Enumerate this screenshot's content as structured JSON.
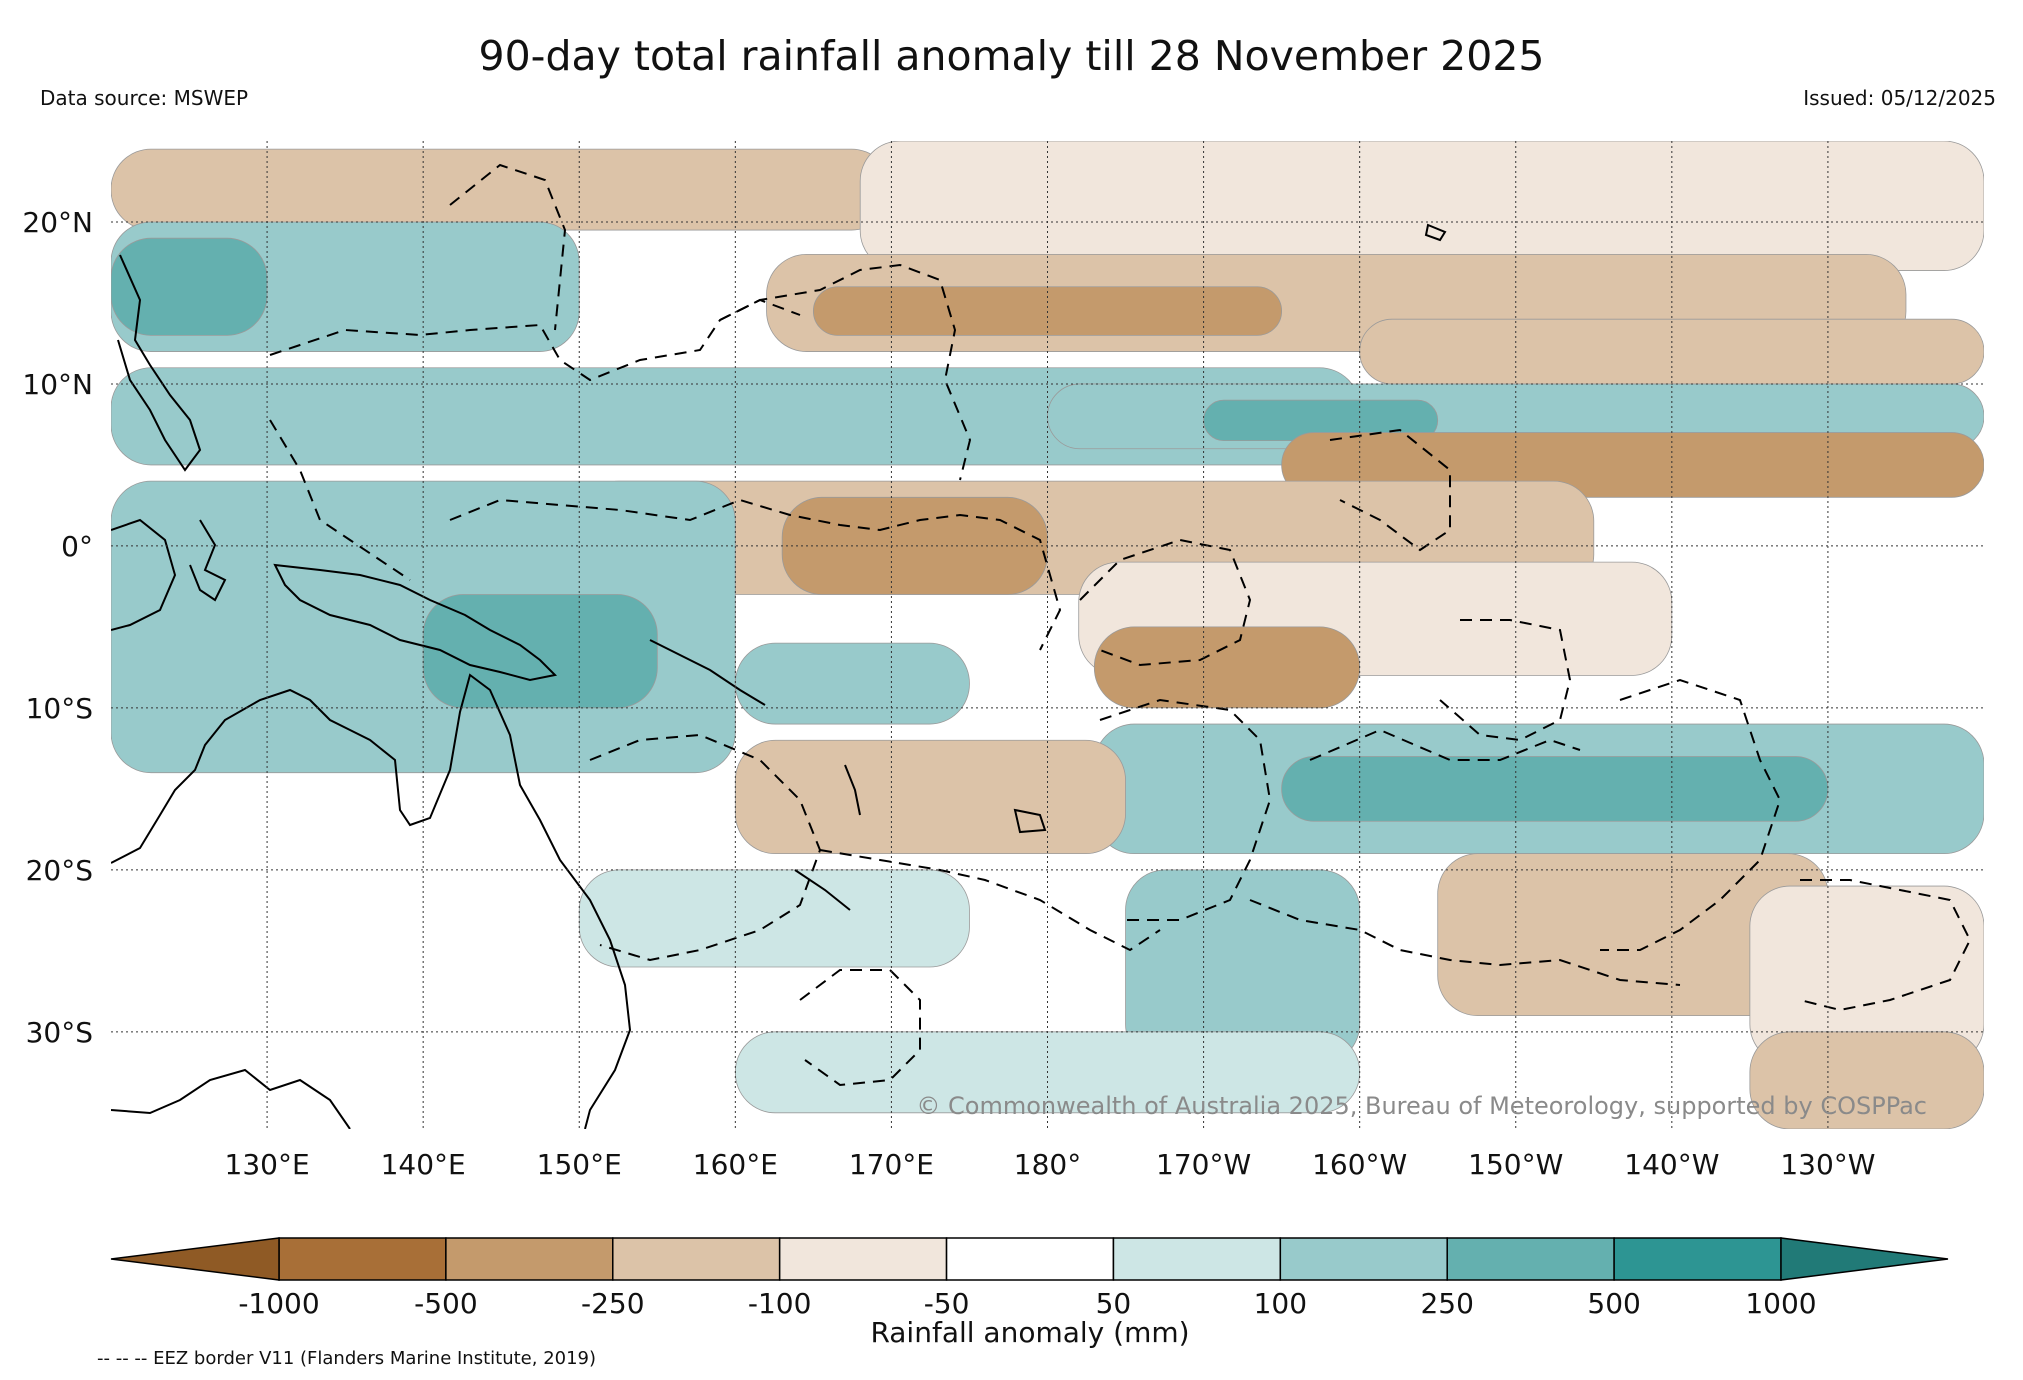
{
  "title": "90-day total rainfall anomaly till 28 November 2025",
  "data_source": "Data source: MSWEP",
  "issued": "Issued: 05/12/2025",
  "map": {
    "lon_range": [
      120,
      240
    ],
    "lat_range": [
      -36,
      25
    ],
    "lat_ticks": [
      {
        "value": 20,
        "label": "20°N"
      },
      {
        "value": 10,
        "label": "10°N"
      },
      {
        "value": 0,
        "label": "0°"
      },
      {
        "value": -10,
        "label": "10°S"
      },
      {
        "value": -20,
        "label": "20°S"
      },
      {
        "value": -30,
        "label": "30°S"
      }
    ],
    "lon_ticks": [
      {
        "value": 130,
        "label": "130°E"
      },
      {
        "value": 140,
        "label": "140°E"
      },
      {
        "value": 150,
        "label": "150°E"
      },
      {
        "value": 160,
        "label": "160°E"
      },
      {
        "value": 170,
        "label": "170°E"
      },
      {
        "value": 180,
        "label": "180°"
      },
      {
        "value": 190,
        "label": "170°W"
      },
      {
        "value": 200,
        "label": "160°W"
      },
      {
        "value": 210,
        "label": "150°W"
      },
      {
        "value": 220,
        "label": "140°W"
      },
      {
        "value": 230,
        "label": "130°W"
      }
    ],
    "gridlines": true,
    "copyright": "© Commonwealth of Australia 2025, Bureau of Meteorology, supported by COSPPac",
    "anomaly_bands": [
      {
        "lon": [
          120,
          170
        ],
        "lat": [
          19.5,
          24.5
        ],
        "level": "dry_100_250"
      },
      {
        "lon": [
          168,
          240
        ],
        "lat": [
          17,
          25
        ],
        "level": "dry_50_100"
      },
      {
        "lon": [
          162,
          235
        ],
        "lat": [
          12,
          18
        ],
        "level": "dry_100_250"
      },
      {
        "lon": [
          165,
          195
        ],
        "lat": [
          13,
          16
        ],
        "level": "dry_250_500"
      },
      {
        "lon": [
          120,
          150
        ],
        "lat": [
          12,
          20
        ],
        "level": "wet_100_250"
      },
      {
        "lon": [
          120,
          130
        ],
        "lat": [
          13,
          19
        ],
        "level": "wet_250_500"
      },
      {
        "lon": [
          120,
          200
        ],
        "lat": [
          5,
          11
        ],
        "level": "wet_100_250"
      },
      {
        "lon": [
          180,
          240
        ],
        "lat": [
          6,
          10
        ],
        "level": "wet_100_250"
      },
      {
        "lon": [
          190,
          205
        ],
        "lat": [
          6.5,
          9
        ],
        "level": "wet_250_500"
      },
      {
        "lon": [
          200,
          240
        ],
        "lat": [
          10,
          14
        ],
        "level": "dry_100_250"
      },
      {
        "lon": [
          195,
          240
        ],
        "lat": [
          3,
          7
        ],
        "level": "dry_250_500"
      },
      {
        "lon": [
          150,
          215
        ],
        "lat": [
          -3,
          4
        ],
        "level": "dry_100_250"
      },
      {
        "lon": [
          163,
          180
        ],
        "lat": [
          -3,
          3
        ],
        "level": "dry_250_500"
      },
      {
        "lon": [
          182,
          220
        ],
        "lat": [
          -8,
          -1
        ],
        "level": "dry_50_100"
      },
      {
        "lon": [
          120,
          160
        ],
        "lat": [
          -14,
          4
        ],
        "level": "wet_100_250"
      },
      {
        "lon": [
          140,
          155
        ],
        "lat": [
          -10,
          -3
        ],
        "level": "wet_250_500"
      },
      {
        "lon": [
          160,
          175
        ],
        "lat": [
          -11,
          -6
        ],
        "level": "wet_100_250"
      },
      {
        "lon": [
          183,
          200
        ],
        "lat": [
          -10,
          -5
        ],
        "level": "dry_250_500"
      },
      {
        "lon": [
          183,
          240
        ],
        "lat": [
          -19,
          -11
        ],
        "level": "wet_100_250"
      },
      {
        "lon": [
          195,
          230
        ],
        "lat": [
          -17,
          -13
        ],
        "level": "wet_250_500"
      },
      {
        "lon": [
          160,
          185
        ],
        "lat": [
          -19,
          -12
        ],
        "level": "dry_100_250"
      },
      {
        "lon": [
          205,
          230
        ],
        "lat": [
          -29,
          -19
        ],
        "level": "dry_100_250"
      },
      {
        "lon": [
          225,
          240
        ],
        "lat": [
          -32,
          -21
        ],
        "level": "dry_50_100"
      },
      {
        "lon": [
          185,
          200
        ],
        "lat": [
          -32,
          -20
        ],
        "level": "wet_100_250"
      },
      {
        "lon": [
          150,
          175
        ],
        "lat": [
          -26,
          -20
        ],
        "level": "wet_50_100"
      },
      {
        "lon": [
          160,
          200
        ],
        "lat": [
          -35,
          -30
        ],
        "level": "wet_50_100"
      },
      {
        "lon": [
          225,
          240
        ],
        "lat": [
          -36,
          -30
        ],
        "level": "dry_100_250"
      }
    ]
  },
  "colorbar": {
    "label": "Rainfall anomaly (mm)",
    "boundaries": [
      "-1000",
      "-500",
      "-250",
      "-100",
      "-50",
      "50",
      "100",
      "250",
      "500",
      "1000"
    ],
    "colors": [
      "#a86f37",
      "#c49a6c",
      "#dcc3a8",
      "#f1e6dc",
      "#ffffff",
      "#cde6e5",
      "#98cacb",
      "#64b0af",
      "#2d9593"
    ],
    "extend_low": "#8f5a25",
    "extend_high": "#217a77"
  },
  "level_colors": {
    "dry_250_500": "#c49a6c",
    "dry_100_250": "#dcc3a8",
    "dry_50_100": "#f1e6dc",
    "wet_50_100": "#cde6e5",
    "wet_100_250": "#98cacb",
    "wet_250_500": "#64b0af"
  },
  "footnote": "-- -- -- EEZ border V11 (Flanders Marine Institute, 2019)"
}
